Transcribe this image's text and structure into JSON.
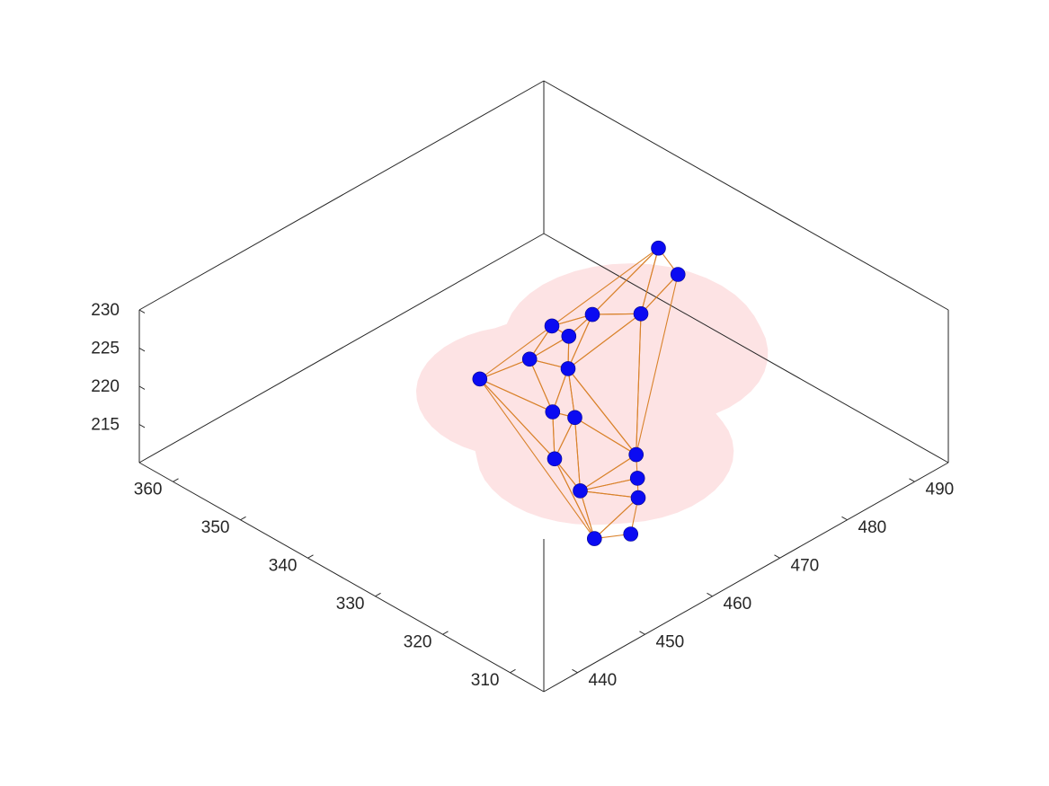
{
  "chart_data": {
    "type": "scatter3d",
    "title": "",
    "xlabel": "",
    "ylabel": "",
    "zlabel": "",
    "xlim": [
      305,
      365
    ],
    "ylim": [
      435,
      495
    ],
    "zlim": [
      210,
      230
    ],
    "x_ticks": [
      "310",
      "320",
      "330",
      "340",
      "350",
      "360"
    ],
    "y_ticks": [
      "440",
      "450",
      "460",
      "470",
      "480",
      "490"
    ],
    "z_ticks": [
      "215",
      "220",
      "225",
      "230"
    ],
    "grid": false,
    "colors": {
      "points": "#0b0bf2",
      "mesh_edges": "#d9822b",
      "surface_region": "#fde3e4",
      "axes": "#262626"
    },
    "points": [
      {
        "x": 306.6,
        "y": 449.5,
        "z": 222.6
      },
      {
        "x": 312.3,
        "y": 449.8,
        "z": 219.0
      },
      {
        "x": 311.0,
        "y": 455.0,
        "z": 222.4
      },
      {
        "x": 318.8,
        "y": 454.2,
        "z": 219.8
      },
      {
        "x": 316.6,
        "y": 460.3,
        "z": 222.6
      },
      {
        "x": 318.6,
        "y": 462.5,
        "z": 217.4
      },
      {
        "x": 326.1,
        "y": 457.7,
        "z": 218.6
      },
      {
        "x": 327.2,
        "y": 461.8,
        "z": 221.4
      },
      {
        "x": 331.8,
        "y": 463.1,
        "z": 219.2
      },
      {
        "x": 341.3,
        "y": 461.8,
        "z": 219.4
      },
      {
        "x": 333.5,
        "y": 467.1,
        "z": 222.0
      },
      {
        "x": 343.0,
        "y": 470.9,
        "z": 216.6
      },
      {
        "x": 339.1,
        "y": 472.8,
        "z": 220.6
      },
      {
        "x": 343.7,
        "y": 474.9,
        "z": 218.6
      },
      {
        "x": 335.7,
        "y": 480.1,
        "z": 221.6
      },
      {
        "x": 345.0,
        "y": 482.2,
        "z": 215.8
      },
      {
        "x": 335.5,
        "y": 485.4,
        "z": 224.2
      },
      {
        "x": 342.0,
        "y": 489.0,
        "z": 222.6
      }
    ]
  }
}
